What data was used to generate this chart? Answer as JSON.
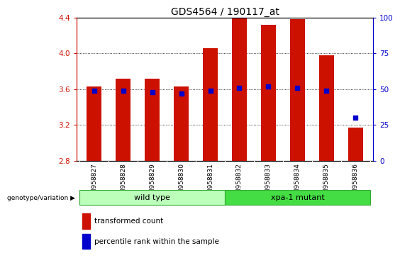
{
  "title": "GDS4564 / 190117_at",
  "samples": [
    "GSM958827",
    "GSM958828",
    "GSM958829",
    "GSM958830",
    "GSM958831",
    "GSM958832",
    "GSM958833",
    "GSM958834",
    "GSM958835",
    "GSM958836"
  ],
  "transformed_count": [
    3.63,
    3.72,
    3.72,
    3.63,
    4.06,
    4.42,
    4.32,
    4.38,
    3.98,
    3.17
  ],
  "percentile_rank": [
    49,
    49,
    48,
    47,
    49,
    51,
    52,
    51,
    49,
    30
  ],
  "ylim": [
    2.8,
    4.4
  ],
  "right_ylim": [
    0,
    100
  ],
  "right_yticks": [
    0,
    25,
    50,
    75,
    100
  ],
  "left_yticks": [
    2.8,
    3.2,
    3.6,
    4.0,
    4.4
  ],
  "bar_color": "#cc1100",
  "dot_color": "#0000cc",
  "bar_bottom": 2.8,
  "wt_color": "#bbffbb",
  "xpa_color": "#44dd44",
  "group_edge_color": "#33aa33",
  "tick_bg_color": "#cccccc",
  "legend_items": [
    {
      "label": "transformed count",
      "color": "#cc1100"
    },
    {
      "label": "percentile rank within the sample",
      "color": "#0000cc"
    }
  ],
  "title_fontsize": 10,
  "bar_width": 0.5,
  "left_tick_color": "#cc1100",
  "right_tick_color": "#0000cc"
}
